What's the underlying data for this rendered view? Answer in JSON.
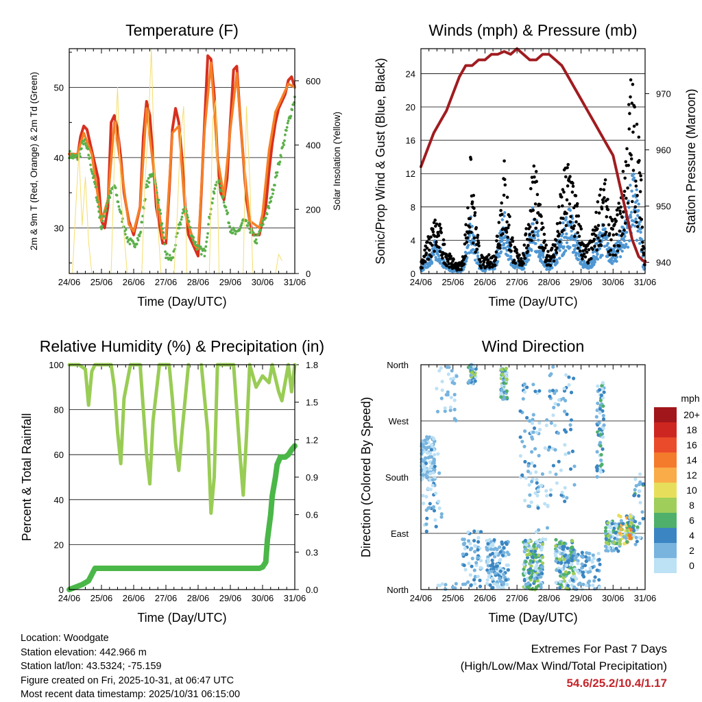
{
  "colors": {
    "temp_2m": "#d7301f",
    "temp_9m": "#f58026",
    "dewpoint": "#5bb04a",
    "solar": "#f4de6a",
    "wind_sonic": "#4f97d3",
    "gust": "#000000",
    "pressure": "#a01c20",
    "rh": "#99cc55",
    "precip": "#4ab748"
  },
  "info": {
    "location": "Location: Woodgate",
    "elevation": "Station elevation: 442.966 m",
    "latlon": "Station lat/lon: 43.5324; -75.159",
    "created": "Figure created on Fri, 2025-10-31, at 06:47 UTC",
    "timestamp": "Most recent data timestamp: 2025/10/31 06:15:00"
  },
  "extremes": {
    "title": "Extremes For Past 7 Days",
    "subtitle": "(High/Low/Max Wind/Total Precipitation)",
    "values": "54.6/25.2/10.4/1.17"
  },
  "chart_data": [
    {
      "id": "temperature",
      "type": "line",
      "title": "Temperature (F)",
      "xlabel": "Time (Day/UTC)",
      "ylabel_left": "2m & 9m T (Red, Orange) & 2m Td (Green)",
      "ylabel_right": "Solar Insolation (Yellow)",
      "xlim": [
        0,
        7
      ],
      "ylim_left": [
        23.5,
        55.5
      ],
      "ylim_right": [
        0,
        700
      ],
      "x_ticks": [
        "24/06",
        "25/06",
        "26/06",
        "27/06",
        "28/06",
        "29/06",
        "30/06",
        "31/06"
      ],
      "y_ticks_left": [
        30,
        40,
        50
      ],
      "y_ticks_right": [
        0,
        200,
        400,
        600
      ],
      "series": [
        {
          "name": "2m T",
          "axis": "left",
          "color_key": "temp_2m",
          "x": [
            0,
            0.15,
            0.25,
            0.35,
            0.45,
            0.55,
            0.7,
            0.9,
            1.0,
            1.1,
            1.2,
            1.3,
            1.4,
            1.5,
            1.6,
            1.7,
            1.85,
            2.0,
            2.1,
            2.2,
            2.3,
            2.4,
            2.5,
            2.6,
            2.7,
            2.9,
            3.0,
            3.1,
            3.2,
            3.3,
            3.4,
            3.5,
            3.6,
            3.7,
            3.9,
            4.0,
            4.1,
            4.2,
            4.3,
            4.4,
            4.5,
            4.6,
            4.7,
            4.8,
            4.9,
            5.0,
            5.1,
            5.2,
            5.3,
            5.4,
            5.5,
            5.6,
            5.7,
            5.9,
            6.0,
            6.1,
            6.2,
            6.3,
            6.4,
            6.5,
            6.6,
            6.7,
            6.8,
            6.9,
            7.0
          ],
          "y": [
            40.5,
            40.5,
            40,
            43,
            44.5,
            44,
            41,
            37,
            31,
            30,
            33,
            45,
            46,
            44,
            40,
            35,
            31,
            29,
            31,
            33,
            43,
            48,
            46,
            40,
            33,
            27.8,
            27.8,
            35,
            44,
            47,
            45,
            40,
            33,
            29,
            27,
            26,
            35,
            45,
            54.5,
            54,
            49,
            40,
            35,
            34,
            37,
            45,
            52.5,
            53,
            46,
            40,
            34,
            31,
            29,
            29,
            31,
            33,
            38,
            42,
            45,
            47,
            48,
            49,
            51,
            51.5,
            50
          ]
        },
        {
          "name": "9m T",
          "axis": "left",
          "color_key": "temp_9m",
          "x": [
            0,
            0.25,
            0.45,
            0.7,
            1.0,
            1.2,
            1.4,
            1.6,
            1.85,
            2.0,
            2.2,
            2.4,
            2.6,
            2.9,
            3.0,
            3.2,
            3.4,
            3.6,
            3.9,
            4.0,
            4.2,
            4.4,
            4.6,
            4.8,
            5.0,
            5.2,
            5.4,
            5.6,
            5.9,
            6.0,
            6.2,
            6.4,
            6.6,
            6.8,
            7.0
          ],
          "y": [
            40.5,
            40.5,
            43.5,
            40.5,
            31,
            34,
            45,
            39,
            30.5,
            29.5,
            33,
            47,
            39,
            28.5,
            28.5,
            43.5,
            44.5,
            32,
            27.5,
            27,
            44,
            53.5,
            40,
            34.5,
            44,
            52,
            40,
            31,
            30,
            32,
            41,
            46.5,
            48.5,
            50.5,
            50
          ]
        },
        {
          "name": "2m Td",
          "axis": "left",
          "color_key": "dewpoint",
          "x": [
            0,
            0.15,
            0.3,
            0.45,
            0.6,
            0.8,
            1.0,
            1.2,
            1.4,
            1.6,
            1.8,
            2.0,
            2.2,
            2.4,
            2.6,
            2.8,
            3.0,
            3.2,
            3.4,
            3.6,
            3.8,
            4.0,
            4.2,
            4.4,
            4.6,
            4.8,
            5.0,
            5.2,
            5.4,
            5.6,
            5.8,
            6.0,
            6.2,
            6.4,
            6.6,
            6.8,
            7.0
          ],
          "y": [
            40.5,
            40,
            40,
            42.5,
            40.5,
            36,
            30,
            34,
            36,
            32,
            28.5,
            27.5,
            29,
            36,
            38,
            33,
            26,
            25.5,
            30,
            33,
            29,
            27,
            26.5,
            33,
            37,
            34,
            30,
            29,
            31,
            30,
            28,
            30.5,
            33,
            37,
            41,
            45,
            48.5
          ]
        },
        {
          "name": "Solar",
          "axis": "right",
          "color_key": "solar",
          "x": [
            0.1,
            0.2,
            0.3,
            0.4,
            0.5,
            0.6,
            0.7,
            1.3,
            1.4,
            1.5,
            1.6,
            1.7,
            1.8,
            2.25,
            2.35,
            2.45,
            2.55,
            2.65,
            2.75,
            2.85,
            3.25,
            3.35,
            3.45,
            3.55,
            3.65,
            4.35,
            4.45,
            4.55,
            4.65,
            5.4,
            5.5,
            5.6,
            5.7,
            6.4,
            6.5,
            6.6
          ],
          "y": [
            0,
            200,
            380,
            150,
            300,
            100,
            0,
            0,
            350,
            580,
            250,
            120,
            0,
            0,
            280,
            450,
            700,
            300,
            150,
            0,
            0,
            180,
            420,
            520,
            0,
            0,
            480,
            540,
            0,
            0,
            520,
            300,
            0,
            0,
            60,
            40
          ]
        }
      ]
    },
    {
      "id": "winds",
      "type": "scatter",
      "title": "Winds (mph) & Pressure (mb)",
      "xlabel": "Time (Day/UTC)",
      "ylabel_left": "Sonic/Prop Wind & Gust (Blue, Black)",
      "ylabel_right": "Station Pressure (Maroon)",
      "xlim": [
        0,
        7
      ],
      "ylim_left": [
        0,
        27
      ],
      "ylim_right": [
        938,
        978
      ],
      "x_ticks": [
        "24/06",
        "25/06",
        "26/06",
        "27/06",
        "28/06",
        "29/06",
        "30/06",
        "31/06"
      ],
      "y_ticks_left": [
        0,
        4,
        8,
        12,
        16,
        20,
        24
      ],
      "y_ticks_right": [
        940,
        950,
        960,
        970
      ],
      "series": [
        {
          "name": "Station Pressure",
          "axis": "right",
          "color_key": "pressure",
          "x": [
            0,
            0.2,
            0.4,
            0.6,
            0.8,
            1.0,
            1.2,
            1.4,
            1.6,
            1.8,
            2.0,
            2.2,
            2.4,
            2.6,
            2.8,
            3.0,
            3.2,
            3.4,
            3.6,
            3.8,
            4.0,
            4.2,
            4.4,
            4.6,
            4.8,
            5.0,
            5.2,
            5.4,
            5.6,
            5.8,
            6.0,
            6.2,
            6.4,
            6.6,
            6.8,
            7.0
          ],
          "y": [
            957,
            960,
            963,
            965,
            967,
            970,
            973,
            975,
            975,
            976,
            976,
            977,
            977,
            977.5,
            977,
            978,
            977,
            976,
            976,
            977,
            977,
            976,
            975,
            973,
            971,
            969,
            967,
            965,
            963,
            961,
            959,
            954,
            949,
            944,
            941,
            940
          ]
        },
        {
          "name": "Gust",
          "axis": "left",
          "color_key": "gust",
          "x": [
            0,
            0.15,
            0.3,
            0.45,
            0.6,
            0.75,
            0.9,
            1.0,
            1.15,
            1.3,
            1.45,
            1.55,
            1.7,
            1.85,
            2.0,
            2.15,
            2.3,
            2.5,
            2.6,
            2.75,
            2.9,
            3.05,
            3.2,
            3.35,
            3.5,
            3.6,
            3.75,
            3.9,
            4.05,
            4.2,
            4.35,
            4.5,
            4.65,
            4.8,
            4.95,
            5.1,
            5.25,
            5.4,
            5.55,
            5.7,
            5.85,
            6.0,
            6.15,
            6.3,
            6.45,
            6.55,
            6.65,
            6.75,
            6.85,
            6.95
          ],
          "y": [
            1.5,
            3,
            4.5,
            6,
            5,
            3,
            2,
            1.5,
            1,
            1.5,
            7,
            12,
            6,
            2,
            1.5,
            2,
            2,
            9,
            12,
            7,
            3,
            2,
            2.5,
            6,
            13,
            11,
            6,
            3,
            2.5,
            4,
            8,
            11,
            13,
            9,
            6,
            3,
            3,
            5,
            8,
            11,
            7,
            5,
            7,
            10,
            16,
            21,
            19,
            17,
            12,
            3
          ]
        },
        {
          "name": "Sonic/Prop Wind",
          "axis": "left",
          "color_key": "wind_sonic",
          "x": [
            0,
            0.15,
            0.3,
            0.45,
            0.6,
            0.75,
            0.9,
            1.0,
            1.15,
            1.3,
            1.45,
            1.55,
            1.7,
            1.85,
            2.0,
            2.15,
            2.3,
            2.5,
            2.6,
            2.75,
            2.9,
            3.05,
            3.2,
            3.35,
            3.5,
            3.6,
            3.75,
            3.9,
            4.05,
            4.2,
            4.35,
            4.5,
            4.65,
            4.8,
            4.95,
            5.1,
            5.25,
            5.4,
            5.55,
            5.7,
            5.85,
            6.0,
            6.15,
            6.3,
            6.45,
            6.55,
            6.65,
            6.75,
            6.85,
            6.95
          ],
          "y": [
            0.5,
            1,
            2,
            3,
            2.5,
            1,
            0.5,
            0.5,
            0.3,
            0.5,
            3,
            5,
            3,
            0.8,
            0.5,
            1,
            1,
            4,
            5.5,
            3,
            1,
            1,
            1,
            3,
            6,
            5,
            2.5,
            1,
            1,
            2,
            3.5,
            5,
            6,
            4,
            2.5,
            1,
            1,
            2,
            3.5,
            4.5,
            3,
            2,
            3,
            4.5,
            6,
            8,
            9,
            7,
            5,
            1
          ]
        }
      ]
    },
    {
      "id": "humidity",
      "type": "line",
      "title": "Relative Humidity (%) & Precipitation (in)",
      "xlabel": "Time (Day/UTC)",
      "ylabel_left": "Percent & Total Rainfall",
      "xlim": [
        0,
        7
      ],
      "ylim_left": [
        0,
        100
      ],
      "ylim_right": [
        0,
        1.8
      ],
      "x_ticks": [
        "24/06",
        "25/06",
        "26/06",
        "27/06",
        "28/06",
        "29/06",
        "30/06",
        "31/06"
      ],
      "y_ticks_left": [
        0,
        20,
        40,
        60,
        80,
        100
      ],
      "y_ticks_right": [
        "0.0",
        "0.3",
        "0.6",
        "0.9",
        "1.2",
        "1.5",
        "1.8"
      ],
      "series": [
        {
          "name": "Relative Humidity",
          "axis": "left",
          "color_key": "rh",
          "x": [
            0,
            0.3,
            0.5,
            0.55,
            0.6,
            0.7,
            0.8,
            1.0,
            1.3,
            1.4,
            1.5,
            1.6,
            1.7,
            1.9,
            2.2,
            2.3,
            2.4,
            2.5,
            2.6,
            2.8,
            3.1,
            3.2,
            3.3,
            3.4,
            3.5,
            3.7,
            4.1,
            4.3,
            4.4,
            4.5,
            4.6,
            4.8,
            5.1,
            5.3,
            5.4,
            5.5,
            5.6,
            5.8,
            6.0,
            6.2,
            6.3,
            6.5,
            6.6,
            6.8,
            6.9,
            7.0
          ],
          "y": [
            100,
            100,
            98,
            90,
            82,
            97,
            100,
            100,
            100,
            90,
            70,
            56,
            85,
            100,
            100,
            80,
            60,
            47,
            75,
            100,
            100,
            85,
            65,
            53,
            70,
            100,
            100,
            70,
            34,
            50,
            100,
            100,
            100,
            60,
            42,
            68,
            100,
            90,
            95,
            92,
            100,
            88,
            84,
            100,
            88,
            100
          ]
        },
        {
          "name": "Total Precipitation",
          "axis": "right",
          "color_key": "precip",
          "x": [
            0,
            0.2,
            0.4,
            0.6,
            0.7,
            0.8,
            1.0,
            2.0,
            3.0,
            4.0,
            5.0,
            5.5,
            5.9,
            6.0,
            6.1,
            6.15,
            6.25,
            6.3,
            6.4,
            6.45,
            6.55,
            6.7,
            6.8,
            6.9,
            7.0
          ],
          "y": [
            0,
            0.02,
            0.04,
            0.07,
            0.12,
            0.17,
            0.17,
            0.17,
            0.17,
            0.17,
            0.17,
            0.17,
            0.17,
            0.18,
            0.22,
            0.4,
            0.6,
            0.75,
            0.9,
            1.0,
            1.06,
            1.06,
            1.08,
            1.12,
            1.15
          ]
        }
      ]
    },
    {
      "id": "wind_direction",
      "type": "scatter",
      "title": "Wind Direction",
      "xlabel": "Time (Day/UTC)",
      "ylabel_left": "Direction (Colored By Speed)",
      "xlim": [
        0,
        7
      ],
      "ylim": [
        0,
        360
      ],
      "x_ticks": [
        "24/06",
        "25/06",
        "26/06",
        "27/06",
        "28/06",
        "29/06",
        "30/06",
        "31/06"
      ],
      "y_ticks_left": [
        "North",
        "East",
        "South",
        "West",
        "North"
      ],
      "legend": {
        "title": "mph",
        "labels": [
          "20+",
          "18",
          "16",
          "14",
          "12",
          "10",
          "8",
          "6",
          "4",
          "2",
          "0"
        ],
        "colors": [
          "#a1161b",
          "#cd2620",
          "#ea4b2a",
          "#f47a2c",
          "#f9ac48",
          "#e7df5b",
          "#9fce5a",
          "#4fb06b",
          "#3b86c2",
          "#78b4de",
          "#bde1f5"
        ]
      }
    }
  ]
}
